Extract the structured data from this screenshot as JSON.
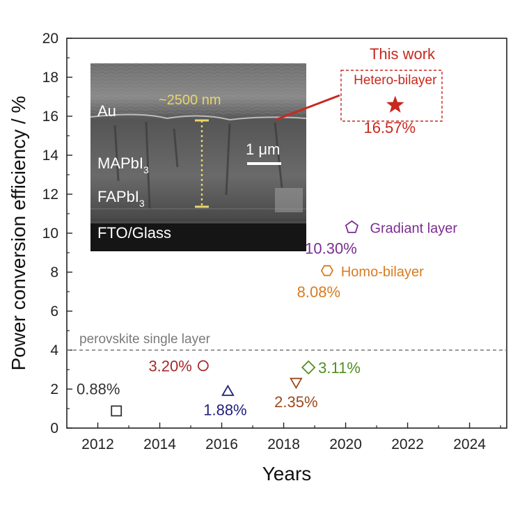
{
  "chart_data": {
    "type": "scatter",
    "xlabel": "Years",
    "ylabel": "Power conversion efficiency / %",
    "xlim": [
      2011,
      2025.2
    ],
    "ylim": [
      0,
      20
    ],
    "xticks": [
      2012,
      2014,
      2016,
      2018,
      2020,
      2022,
      2024
    ],
    "yticks": [
      0,
      2,
      4,
      6,
      8,
      10,
      12,
      14,
      16,
      18,
      20
    ],
    "grid": false,
    "reference_line": {
      "y": 4,
      "label": "perovskite single layer",
      "style": "dashed",
      "color": "#777777"
    },
    "points": [
      {
        "x": 2012.6,
        "y": 0.88,
        "label": "0.88%",
        "marker": "square",
        "color": "#333333"
      },
      {
        "x": 2015.4,
        "y": 3.2,
        "label": "3.20%",
        "marker": "circle",
        "color": "#a52a2a"
      },
      {
        "x": 2016.2,
        "y": 1.88,
        "label": "1.88%",
        "marker": "triangle-up",
        "color": "#1f1f7a"
      },
      {
        "x": 2018.4,
        "y": 2.35,
        "label": "2.35%",
        "marker": "triangle-down",
        "color": "#9b4a1c"
      },
      {
        "x": 2018.8,
        "y": 3.11,
        "label": "3.11%",
        "marker": "diamond",
        "color": "#4f8f24"
      },
      {
        "x": 2019.4,
        "y": 8.08,
        "label": "8.08%",
        "name": "Homo-bilayer",
        "marker": "hexagon",
        "color": "#d97b1f"
      },
      {
        "x": 2020.2,
        "y": 10.3,
        "label": "10.30%",
        "name": "Gradiant layer",
        "marker": "pentagon",
        "color": "#7a2d90"
      },
      {
        "x": 2021.6,
        "y": 16.57,
        "label": "16.57%",
        "name": "Hetero-bilayer",
        "marker": "star",
        "color": "#c8281e"
      }
    ],
    "annotations": {
      "this_work": "This work"
    }
  },
  "inset": {
    "labels": {
      "au": "Au",
      "thickness": "~2500 nm",
      "scale": "1 μm",
      "mapbi": "MAPbI",
      "fapbi": "FAPbI",
      "subscript": "3",
      "fto": "FTO/Glass"
    }
  }
}
